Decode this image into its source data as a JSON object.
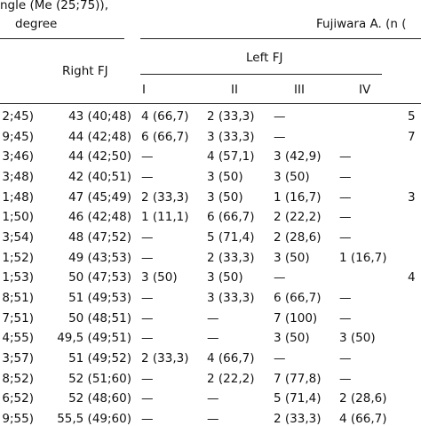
{
  "header": {
    "angle_line1": "ngle (Me (25;75)),",
    "angle_line2": "degree",
    "fujiwara": "Fujiwara A. (n (",
    "right_fj": "Right FJ",
    "left_fj": "Left FJ",
    "grades": [
      "I",
      "II",
      "III",
      "IV"
    ]
  },
  "rows": [
    {
      "c0": "2;45)",
      "c1": "43 (40;48)",
      "g1": "4 (66,7)",
      "g2": "2 (33,3)",
      "g3": "—",
      "g4": "",
      "c6": "5"
    },
    {
      "c0": "9;45)",
      "c1": "44 (42;48)",
      "g1": "6 (66,7)",
      "g2": "3 (33,3)",
      "g3": "—",
      "g4": "",
      "c6": "7"
    },
    {
      "c0": "3;46)",
      "c1": "44 (42;50)",
      "g1": "—",
      "g2": "4 (57,1)",
      "g3": "3 (42,9)",
      "g4": "—",
      "c6": ""
    },
    {
      "c0": "3;48)",
      "c1": "42 (40;51)",
      "g1": "—",
      "g2": "3 (50)",
      "g3": "3 (50)",
      "g4": "—",
      "c6": ""
    },
    {
      "c0": "1;48)",
      "c1": "47 (45;49)",
      "g1": "2 (33,3)",
      "g2": "3 (50)",
      "g3": "1 (16,7)",
      "g4": "—",
      "c6": "3"
    },
    {
      "c0": "1;50)",
      "c1": "46 (42;48)",
      "g1": "1 (11,1)",
      "g2": "6 (66,7)",
      "g3": "2 (22,2)",
      "g4": "—",
      "c6": ""
    },
    {
      "c0": "3;54)",
      "c1": "48 (47;52)",
      "g1": "—",
      "g2": "5 (71,4)",
      "g3": "2 (28,6)",
      "g4": "—",
      "c6": ""
    },
    {
      "c0": "1;52)",
      "c1": "49 (43;53)",
      "g1": "—",
      "g2": "2 (33,3)",
      "g3": "3 (50)",
      "g4": "1 (16,7)",
      "c6": ""
    },
    {
      "c0": "1;53)",
      "c1": "50 (47;53)",
      "g1": "3 (50)",
      "g2": "3 (50)",
      "g3": "—",
      "g4": "",
      "c6": "4"
    },
    {
      "c0": "8;51)",
      "c1": "51 (49;53)",
      "g1": "—",
      "g2": "3 (33,3)",
      "g3": "6 (66,7)",
      "g4": "—",
      "c6": ""
    },
    {
      "c0": "7;51)",
      "c1": "50 (48;51)",
      "g1": "—",
      "g2": "—",
      "g3": "7 (100)",
      "g4": "—",
      "c6": ""
    },
    {
      "c0": "4;55)",
      "c1": "49,5 (49;51)",
      "g1": "—",
      "g2": "—",
      "g3": "3 (50)",
      "g4": "3 (50)",
      "c6": ""
    },
    {
      "c0": "3;57)",
      "c1": "51 (49;52)",
      "g1": "2 (33,3)",
      "g2": "4 (66,7)",
      "g3": "—",
      "g4": "—",
      "c6": ""
    },
    {
      "c0": "8;52)",
      "c1": "52 (51;60)",
      "g1": "—",
      "g2": "2 (22,2)",
      "g3": "7 (77,8)",
      "g4": "—",
      "c6": ""
    },
    {
      "c0": "6;52)",
      "c1": "52 (48;60)",
      "g1": "—",
      "g2": "—",
      "g3": "5 (71,4)",
      "g4": "2 (28,6)",
      "c6": ""
    },
    {
      "c0": "9;55)",
      "c1": "55,5 (49;60)",
      "g1": "—",
      "g2": "—",
      "g3": "2 (33,3)",
      "g4": "4 (66,7)",
      "c6": ""
    }
  ]
}
